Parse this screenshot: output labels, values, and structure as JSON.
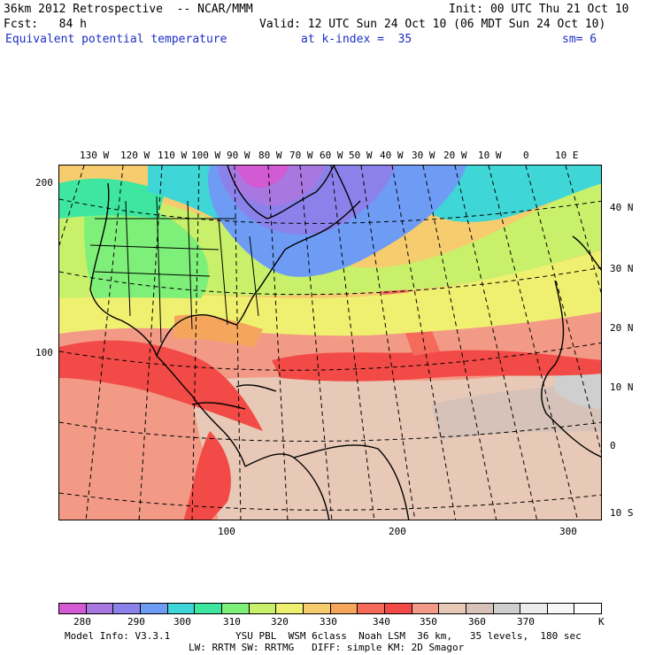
{
  "header": {
    "model": "36km 2012 Retrospective  -- NCAR/MMM",
    "init": "Init: 00 UTC Thu 21 Oct 10",
    "fcst": "Fcst:   84 h",
    "valid": "Valid: 12 UTC Sun 24 Oct 10 (06 MDT Sun 24 Oct 10)",
    "field": "Equivalent potential temperature",
    "level": "at k-index =  35",
    "smooth": "sm= 6"
  },
  "axes": {
    "top_lon_labels": [
      "130 W",
      "120 W",
      "110 W",
      "100 W",
      "90 W",
      "80 W",
      "70 W",
      "60 W",
      "50 W",
      "40 W",
      "30 W",
      "20 W",
      "10 W",
      "0",
      "10 E"
    ],
    "right_lat_labels": [
      "40 N",
      "30 N",
      "20 N",
      "10 N",
      "0",
      "10 S"
    ],
    "left_grid_labels": [
      "200",
      "100"
    ],
    "bottom_grid_labels": [
      "100",
      "200",
      "300"
    ]
  },
  "colorbar": {
    "colors": [
      "#d25ad2",
      "#a878e0",
      "#8a82ea",
      "#6e9cf5",
      "#3ed6d6",
      "#3ee6a0",
      "#7ef07a",
      "#c8f06a",
      "#f0f070",
      "#f6cc6e",
      "#f6a65c",
      "#f56a5a",
      "#f24a46",
      "#f29a86",
      "#e8c8b6",
      "#d6c2b8",
      "#cfcfcf",
      "#ececec",
      "#f8f8f8",
      "#ffffff"
    ],
    "labels": [
      "280",
      "290",
      "300",
      "310",
      "320",
      "330",
      "340",
      "350",
      "360",
      "370"
    ],
    "unit": "K"
  },
  "footer": {
    "line1_left": "Model Info: V3.3.1",
    "line1_right": "YSU PBL  WSM 6class  Noah LSM  36 km,   35 levels,  180 sec",
    "line2": "LW: RRTM SW: RRTMG   DIFF: simple KM: 2D Smagor"
  }
}
